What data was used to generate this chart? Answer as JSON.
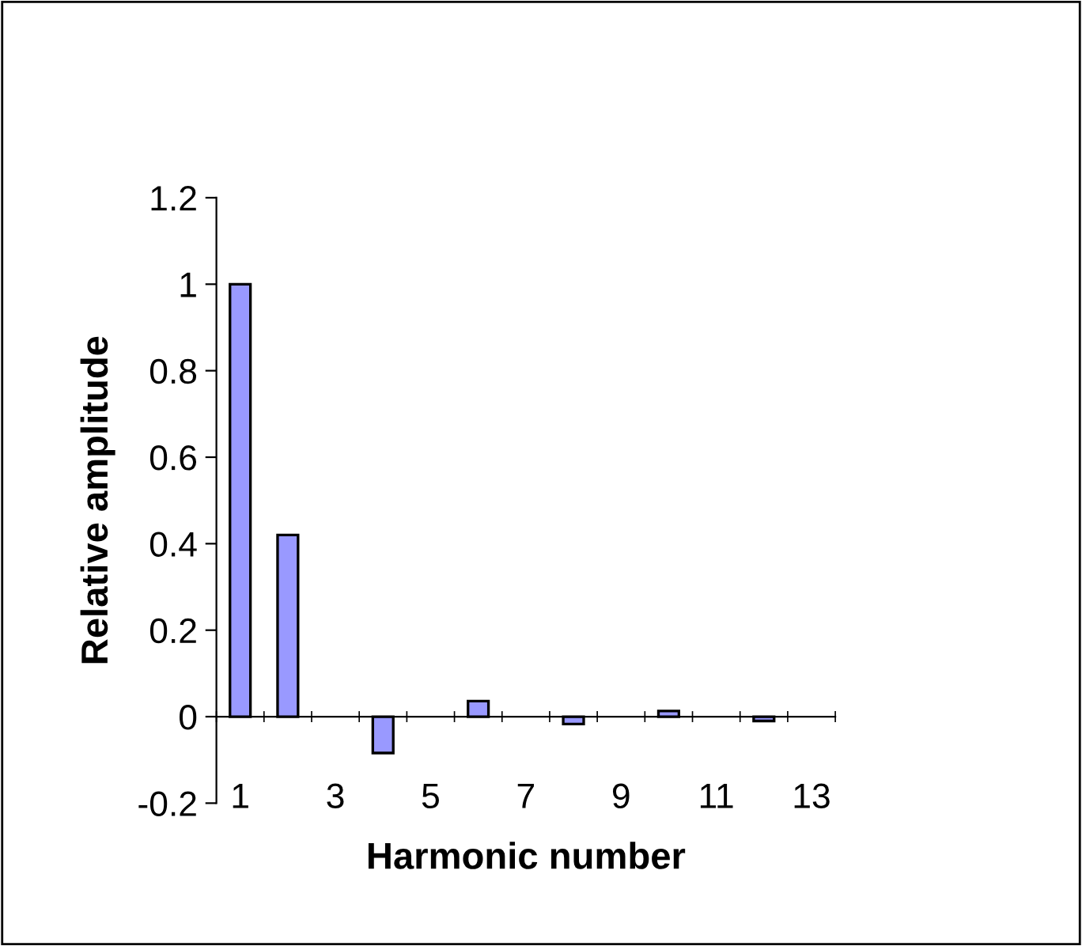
{
  "chart_data": {
    "type": "bar",
    "xlabel": "Harmonic number",
    "ylabel": "Relative amplitude",
    "categories": [
      "1",
      null,
      "3",
      null,
      "5",
      null,
      "7",
      null,
      "9",
      null,
      "11",
      null,
      "13"
    ],
    "values": [
      1.0,
      0.42,
      null,
      -0.084,
      null,
      0.036,
      null,
      -0.017,
      null,
      0.013,
      null,
      -0.01,
      null
    ],
    "color": "#9999ff",
    "ylim": [
      -0.2,
      1.2
    ],
    "yticks": [
      {
        "value": -0.2,
        "label": "-0.2"
      },
      0,
      0.2,
      0.4,
      0.6,
      0.8,
      1,
      1.2
    ],
    "grid": false,
    "legend": false
  }
}
